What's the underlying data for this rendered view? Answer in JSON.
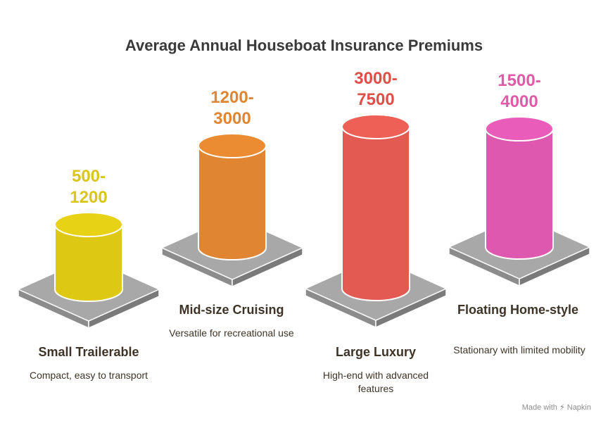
{
  "chart_data": {
    "type": "bar",
    "title": "Average Annual Houseboat Insurance Premiums",
    "xlabel": "",
    "ylabel": "",
    "categories": [
      "Small Trailerable",
      "Mid-size Cruising",
      "Large Luxury",
      "Floating Home-style"
    ],
    "descriptions": [
      "Compact, easy to transport",
      "Versatile for recreational use",
      "High-end with advanced features",
      "Stationary with limited mobility"
    ],
    "ranges": [
      [
        500,
        1200
      ],
      [
        1200,
        3000
      ],
      [
        3000,
        7500
      ],
      [
        1500,
        4000
      ]
    ],
    "value_labels": [
      [
        "500-",
        "1200"
      ],
      [
        "1200-",
        "3000"
      ],
      [
        "3000-",
        "7500"
      ],
      [
        "1500-",
        "4000"
      ]
    ],
    "colors": [
      "#ddc814",
      "#e08531",
      "#e35a52",
      "#de58b0"
    ],
    "label_colors": [
      "#d9c51c",
      "#e08531",
      "#e04e48",
      "#e05aa8"
    ]
  },
  "footer": {
    "prefix": "Made with",
    "brand": "Napkin"
  }
}
